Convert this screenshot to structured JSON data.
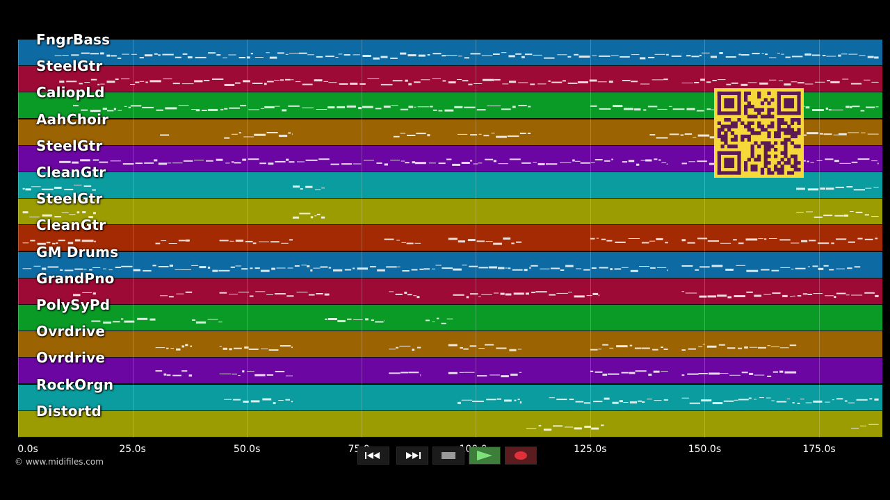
{
  "tracks": [
    {
      "name": "FngrBass",
      "color": "#0e6aa3"
    },
    {
      "name": "SteelGtr",
      "color": "#9e0a36"
    },
    {
      "name": "CaliopLd",
      "color": "#0a9a26"
    },
    {
      "name": "AahChoir",
      "color": "#9b6302"
    },
    {
      "name": "SteelGtr",
      "color": "#6c06a2"
    },
    {
      "name": "CleanGtr",
      "color": "#0a9c9e"
    },
    {
      "name": "SteelGtr",
      "color": "#9b9b02"
    },
    {
      "name": "CleanGtr",
      "color": "#a32a02"
    },
    {
      "name": "GM Drums",
      "color": "#0e6aa3"
    },
    {
      "name": "GrandPno",
      "color": "#9e0a36"
    },
    {
      "name": "PolySyPd",
      "color": "#0a9a26"
    },
    {
      "name": "Ovrdrive",
      "color": "#9b6302"
    },
    {
      "name": "Ovrdrive",
      "color": "#6c06a2"
    },
    {
      "name": "RockOrgn",
      "color": "#0a9c9e"
    },
    {
      "name": "Distortd",
      "color": "#9b9b02"
    }
  ],
  "timeline": {
    "ticks": [
      "0.0s",
      "25.0s",
      "50.0s",
      "75.0s",
      "100.0s",
      "125.0s",
      "150.0s",
      "175.0s"
    ]
  },
  "copyright": "© www.midifiles.com",
  "controls": {
    "rewind_icon": "rewind-icon",
    "fastforward_icon": "fast-forward-icon",
    "stop_icon": "stop-icon",
    "play_icon": "play-icon",
    "record_icon": "record-icon",
    "play_color": "#3d7e3b",
    "record_color": "#e0303a"
  },
  "qr": {
    "color": "#f7d83a",
    "module_color": "#5a1a55"
  }
}
